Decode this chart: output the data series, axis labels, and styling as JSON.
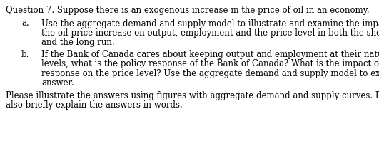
{
  "title_line": "Question 7. Suppose there is an exogenous increase in the price of oil in an economy.",
  "item_a_label": "a.",
  "item_a_text_line1": "Use the aggregate demand and supply model to illustrate and examine the impact of",
  "item_a_text_line2": "the oil-price increase on output, employment and the price level in both the short run",
  "item_a_text_line3": "and the long run.",
  "item_b_label": "b.",
  "item_b_text_line1": "If the Bank of Canada cares about keeping output and employment at their natural-rate",
  "item_b_text_line2": "levels, what is the policy response of the Bank of Canada? What is the impact of policy",
  "item_b_text_line3": "response on the price level? Use the aggregate demand and supply model to explain your",
  "item_b_text_line4": "answer.",
  "footer_line1": "Please illustrate the answers using figures with aggregate demand and supply curves. Please",
  "footer_line2": "also briefly explain the answers in words.",
  "bg_color": "#ffffff",
  "text_color": "#000000",
  "font_size": 8.5,
  "font_family": "DejaVu Serif"
}
